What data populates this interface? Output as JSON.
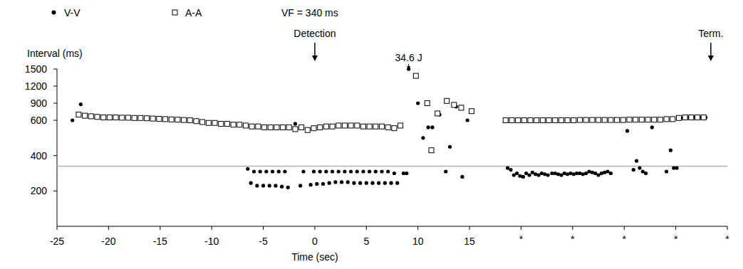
{
  "chart_data": {
    "type": "scatter",
    "y_label": "Interval (ms)",
    "x_label": "Time (sec)",
    "xlim": [
      -25,
      40
    ],
    "ylim": [
      0,
      1500
    ],
    "xticks": [
      -25,
      -20,
      -15,
      -10,
      -5,
      0,
      5,
      10,
      15,
      {
        "value": 20,
        "label": "*"
      },
      {
        "value": 25,
        "label": "*"
      },
      {
        "value": 30,
        "label": "*"
      },
      {
        "value": 35,
        "label": "*"
      },
      {
        "value": 40,
        "label": "*"
      }
    ],
    "yticks": [
      200,
      400,
      600,
      900,
      1200,
      1500
    ],
    "grid": false,
    "legend": "top",
    "threshold": {
      "label": "VF = 340 ms",
      "value": 340,
      "color": "#b0b0b0"
    },
    "annotations": [
      {
        "text": "Detection",
        "x": 0
      },
      {
        "text": "34.6 J",
        "x": 9.1
      },
      {
        "text": "Term.",
        "x": 38.4
      }
    ],
    "series": [
      {
        "name": "V-V",
        "color": "#000000",
        "marker": "circle",
        "x": [
          -23.5,
          -22.7,
          -22.3,
          -21.7,
          -21.1,
          -20.5,
          -19.9,
          -19.3,
          -18.7,
          -18.1,
          -17.5,
          -16.9,
          -16.3,
          -15.7,
          -15.1,
          -14.5,
          -13.9,
          -13.3,
          -12.7,
          -12.1,
          -11.5,
          -10.9,
          -10.3,
          -9.7,
          -9.1,
          -8.5,
          -7.9,
          -7.3,
          -6.5,
          -6.2,
          -5.9,
          -5.6,
          -5.3,
          -5.0,
          -4.7,
          -4.4,
          -4.1,
          -3.8,
          -3.5,
          -3.2,
          -2.9,
          -2.6,
          -1.9,
          -1.4,
          -1.1,
          -0.4,
          -0.1,
          0.2,
          0.5,
          0.8,
          1.1,
          1.4,
          1.7,
          2.0,
          2.3,
          2.6,
          2.9,
          3.2,
          3.5,
          3.8,
          4.1,
          4.4,
          4.7,
          5.0,
          5.3,
          5.6,
          5.9,
          6.2,
          6.5,
          6.8,
          7.1,
          7.4,
          7.7,
          8.0,
          8.6,
          8.9,
          9.1,
          10.0,
          10.5,
          11.0,
          11.4,
          12.1,
          12.7,
          13.1,
          13.7,
          14.3,
          14.8,
          18.7,
          19.0,
          19.3,
          19.6,
          19.9,
          20.2,
          20.5,
          20.8,
          21.1,
          21.4,
          21.7,
          22.0,
          22.3,
          22.6,
          23.0,
          23.3,
          23.6,
          23.9,
          24.2,
          24.5,
          24.8,
          25.1,
          25.4,
          25.7,
          26.0,
          26.3,
          26.6,
          26.9,
          27.2,
          27.5,
          27.8,
          28.1,
          28.4,
          28.7,
          30.3,
          30.9,
          31.2,
          31.5,
          31.8,
          32.1,
          32.7,
          34.1,
          34.5,
          34.8,
          35.1,
          35.5,
          36.1,
          36.7,
          37.3,
          37.9
        ],
        "values": [
          600,
          880,
          680,
          670,
          660,
          650,
          650,
          650,
          645,
          645,
          640,
          640,
          635,
          630,
          625,
          620,
          615,
          610,
          605,
          600,
          595,
          590,
          585,
          585,
          580,
          580,
          575,
          575,
          325,
          245,
          310,
          230,
          310,
          230,
          310,
          230,
          310,
          230,
          310,
          225,
          310,
          220,
          580,
          230,
          310,
          235,
          310,
          240,
          310,
          240,
          310,
          245,
          310,
          250,
          310,
          250,
          310,
          250,
          310,
          245,
          310,
          245,
          310,
          245,
          310,
          245,
          310,
          245,
          310,
          245,
          310,
          245,
          300,
          245,
          300,
          300,
          1500,
          900,
          500,
          560,
          560,
          700,
          310,
          450,
          840,
          280,
          600,
          330,
          320,
          290,
          300,
          285,
          280,
          300,
          290,
          305,
          295,
          290,
          300,
          295,
          290,
          300,
          300,
          295,
          290,
          300,
          295,
          300,
          295,
          300,
          300,
          295,
          300,
          310,
          305,
          300,
          290,
          300,
          305,
          310,
          300,
          540,
          320,
          370,
          330,
          310,
          300,
          560,
          310,
          430,
          330,
          330,
          640,
          650,
          650,
          650,
          650
        ]
      },
      {
        "name": "A-A",
        "color": "#000000",
        "marker": "square",
        "x": [
          -22.9,
          -22.3,
          -21.7,
          -21.1,
          -20.5,
          -19.9,
          -19.3,
          -18.7,
          -18.1,
          -17.5,
          -16.9,
          -16.3,
          -15.7,
          -15.1,
          -14.5,
          -13.9,
          -13.3,
          -12.7,
          -12.1,
          -11.5,
          -10.9,
          -10.3,
          -9.7,
          -9.1,
          -8.5,
          -7.9,
          -7.3,
          -6.7,
          -6.1,
          -5.5,
          -4.9,
          -4.3,
          -3.7,
          -3.1,
          -2.5,
          -1.9,
          -1.3,
          -0.7,
          -0.1,
          0.5,
          1.1,
          1.7,
          2.3,
          2.9,
          3.5,
          4.1,
          4.7,
          5.3,
          5.9,
          6.5,
          7.1,
          7.7,
          8.3,
          9.8,
          10.9,
          11.3,
          11.9,
          12.8,
          13.5,
          14.2,
          15.2,
          18.5,
          19.1,
          19.7,
          20.3,
          20.9,
          21.5,
          22.1,
          22.7,
          23.3,
          23.9,
          24.5,
          25.1,
          25.7,
          26.3,
          26.9,
          27.5,
          28.1,
          28.7,
          29.3,
          29.9,
          30.5,
          31.1,
          31.7,
          32.3,
          32.9,
          33.5,
          34.1,
          34.7,
          35.3,
          35.9,
          36.5,
          37.1,
          37.7
        ],
        "values": [
          700,
          680,
          670,
          660,
          650,
          650,
          650,
          645,
          645,
          640,
          640,
          635,
          630,
          625,
          620,
          615,
          610,
          605,
          600,
          595,
          590,
          585,
          585,
          580,
          580,
          575,
          575,
          570,
          565,
          565,
          560,
          560,
          560,
          560,
          560,
          550,
          560,
          545,
          555,
          560,
          565,
          565,
          570,
          570,
          570,
          570,
          565,
          565,
          565,
          565,
          560,
          555,
          570,
          1380,
          900,
          430,
          720,
          940,
          870,
          820,
          760,
          600,
          600,
          600,
          600,
          600,
          600,
          600,
          600,
          600,
          600,
          600,
          600,
          605,
          605,
          605,
          605,
          605,
          605,
          605,
          605,
          610,
          610,
          610,
          610,
          610,
          610,
          620,
          620,
          640,
          650,
          650,
          650,
          650
        ]
      }
    ]
  }
}
